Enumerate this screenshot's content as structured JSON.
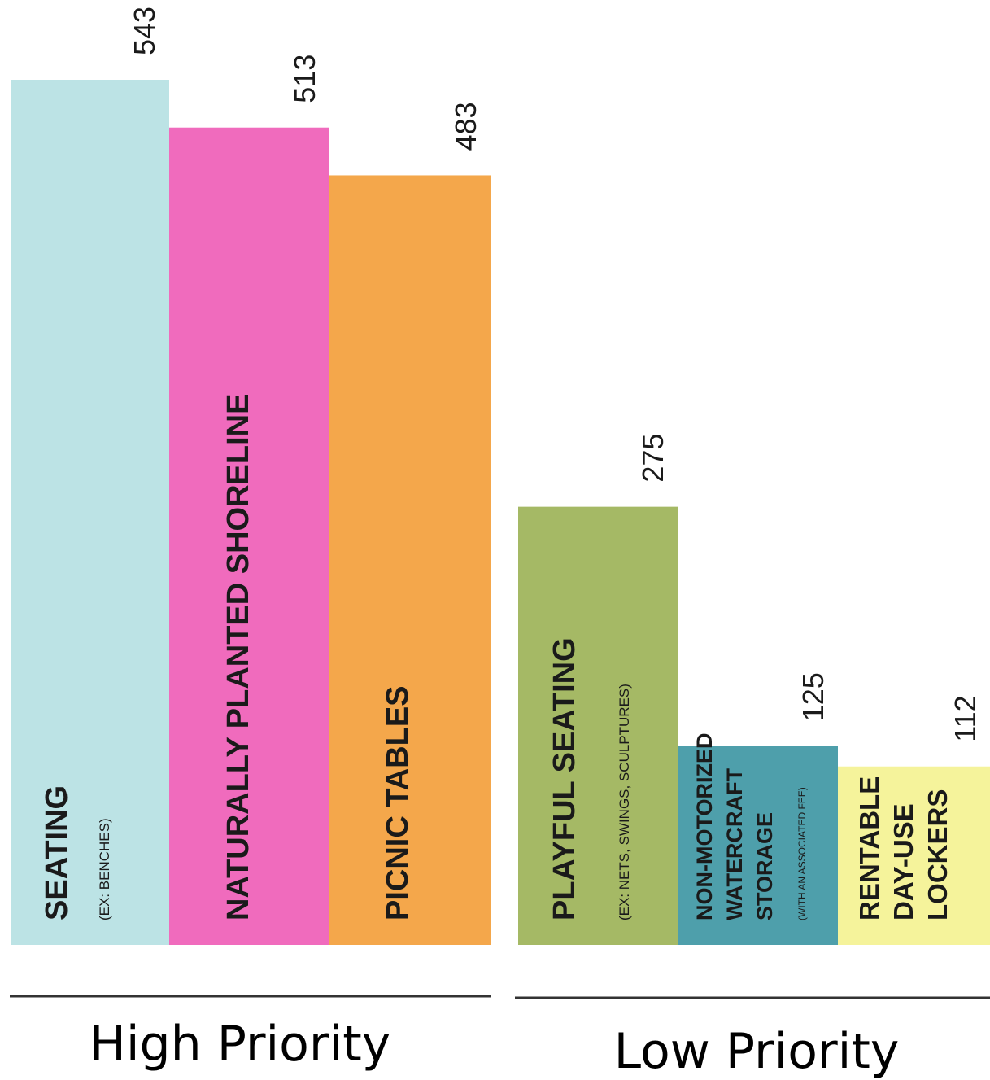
{
  "chart_data": {
    "type": "bar",
    "groups": [
      {
        "label": "High Priority",
        "categories": [
          {
            "label": "SEATING",
            "sublabel": "(EX: BENCHES)",
            "value": 543,
            "color": "#bce3e5"
          },
          {
            "label": "NATURALLY PLANTED SHORELINE",
            "sublabel": "",
            "value": 513,
            "color": "#f06bbd"
          },
          {
            "label": "PICNIC TABLES",
            "sublabel": "",
            "value": 483,
            "color": "#f4a74b"
          }
        ]
      },
      {
        "label": "Low Priority",
        "categories": [
          {
            "label": "PLAYFUL SEATING",
            "sublabel": "(EX: NETS, SWINGS, SCULPTURES)",
            "value": 275,
            "color": "#a5b965"
          },
          {
            "label": "NON-MOTORIZED WATERCRAFT STORAGE",
            "sublabel": "(WITH AN ASSOCIATED FEE)",
            "value": 125,
            "color": "#4e9fab"
          },
          {
            "label": "RENTABLE DAY-USE LOCKERS",
            "sublabel": "",
            "value": 112,
            "color": "#f5f39b"
          }
        ]
      }
    ],
    "value_labels": [
      "543",
      "513",
      "483",
      "275",
      "125",
      "112"
    ]
  }
}
